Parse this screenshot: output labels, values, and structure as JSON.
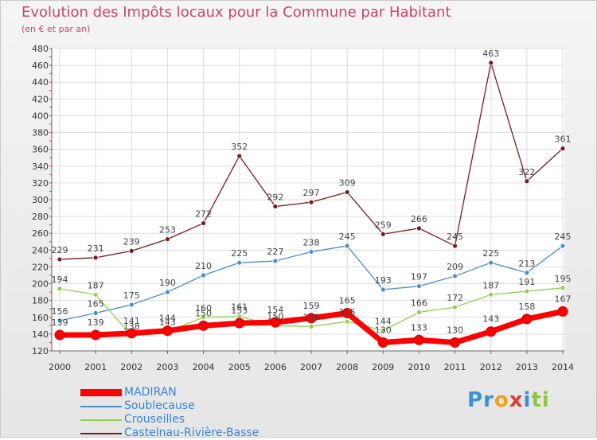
{
  "title": "Evolution des Impôts locaux pour la Commune par Habitant",
  "subtitle": "(en € et par an)",
  "logo": {
    "letters": [
      {
        "char": "P",
        "color": "#3a8fd6"
      },
      {
        "char": "r",
        "color": "#3a8fd6"
      },
      {
        "char": "o",
        "color": "#f0a021"
      },
      {
        "char": "x",
        "color": "#e03c31"
      },
      {
        "char": "i",
        "color": "#3a8fd6"
      },
      {
        "char": "t",
        "color": "#8cc63f"
      },
      {
        "char": "i",
        "color": "#8cc63f"
      }
    ]
  },
  "chart_data": {
    "type": "line",
    "x": [
      2000,
      2001,
      2002,
      2003,
      2004,
      2005,
      2006,
      2007,
      2008,
      2009,
      2010,
      2011,
      2012,
      2013,
      2014
    ],
    "ylim": [
      120,
      480
    ],
    "yticks": [
      120,
      140,
      160,
      180,
      200,
      220,
      240,
      260,
      280,
      300,
      320,
      340,
      360,
      380,
      400,
      420,
      440,
      460,
      480
    ],
    "grid": true,
    "legend_position": "bottom-left",
    "series": [
      {
        "name": "Castelnau-Rivière-Basse",
        "color": "#7b1a1a",
        "style": "thin",
        "values": [
          229,
          231,
          239,
          253,
          272,
          352,
          292,
          297,
          309,
          259,
          266,
          245,
          463,
          322,
          361
        ]
      },
      {
        "name": "Soublecause",
        "color": "#4a8ecf",
        "style": "thin",
        "values": [
          156,
          165,
          175,
          190,
          210,
          225,
          227,
          238,
          245,
          193,
          197,
          209,
          225,
          213,
          245
        ]
      },
      {
        "name": "Crouseilles",
        "color": "#8fd14f",
        "style": "thin",
        "values": [
          194,
          187,
          138,
          143,
          160,
          161,
          150,
          149,
          155,
          144,
          166,
          172,
          187,
          191,
          195
        ]
      },
      {
        "name": "MADIRAN",
        "color": "#ff0000",
        "style": "thick",
        "values": [
          139,
          139,
          141,
          144,
          150,
          153,
          154,
          159,
          165,
          130,
          133,
          130,
          143,
          158,
          167
        ]
      }
    ]
  }
}
